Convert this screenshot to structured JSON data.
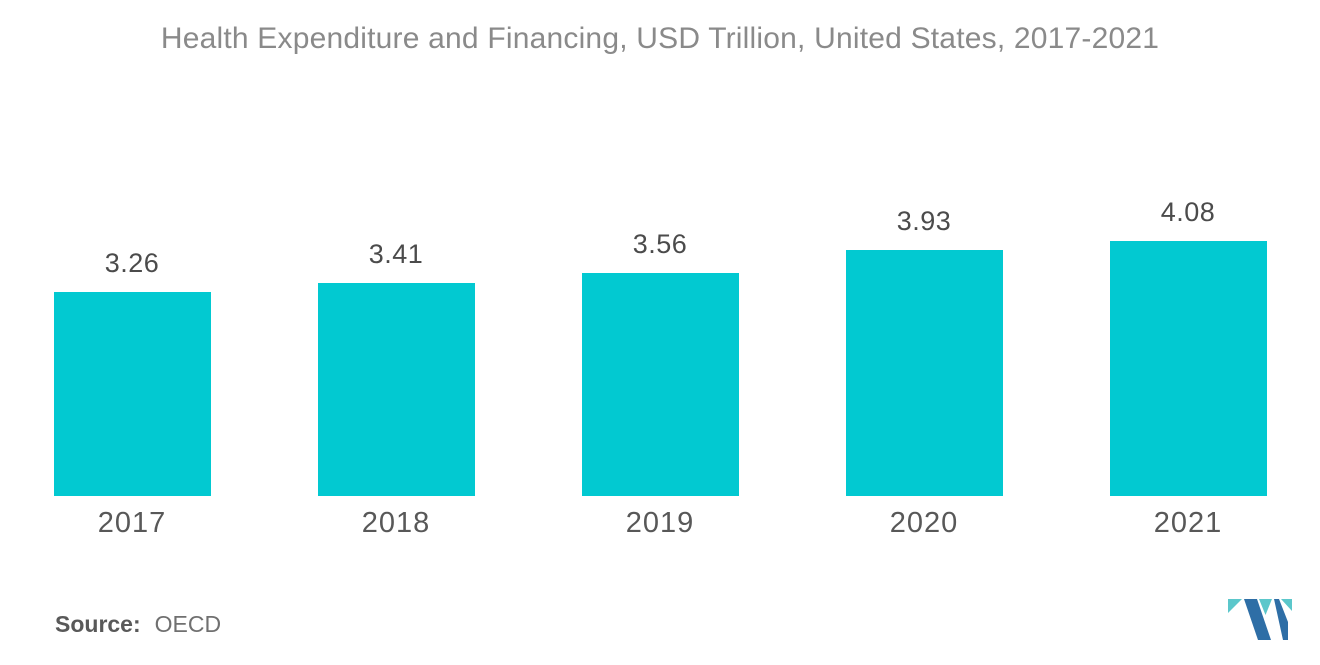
{
  "chart_data": {
    "type": "bar",
    "title": "Health Expenditure and Financing, USD Trillion, United States, 2017-2021",
    "categories": [
      "2017",
      "2018",
      "2019",
      "2020",
      "2021"
    ],
    "values": [
      3.26,
      3.41,
      3.56,
      3.93,
      4.08
    ],
    "xlabel": "",
    "ylabel": "",
    "ylim": [
      0,
      4.08
    ],
    "grid": false,
    "value_labels": true,
    "legend": "none",
    "bar_color": "#02C9D1",
    "label_color": "#4b4b4b",
    "axis_label_color": "#585858",
    "title_color": "#8a8a8a"
  },
  "source": {
    "label": "Source:",
    "value": "OECD"
  },
  "logo": {
    "name": "mordor-intelligence-logo",
    "blue": "#2E6EA6",
    "teal": "#5BC7CB"
  }
}
